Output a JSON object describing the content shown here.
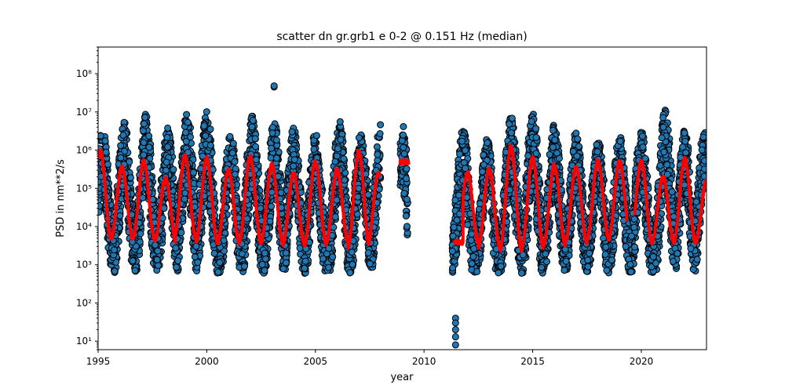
{
  "chart_data": {
    "type": "scatter",
    "title": "scatter dn gr.grb1 e 0-2 @ 0.151 Hz (median)",
    "xlabel": "year",
    "ylabel": "PSD in nm**2/s",
    "xlim": [
      1995.0,
      2023.0
    ],
    "ylim": [
      6,
      500000000
    ],
    "yscale": "log",
    "x_ticks": [
      1995,
      2000,
      2005,
      2010,
      2015,
      2020
    ],
    "y_ticks": [
      {
        "value": 10,
        "label": "10¹"
      },
      {
        "value": 100,
        "label": "10²"
      },
      {
        "value": 1000,
        "label": "10³"
      },
      {
        "value": 10000,
        "label": "10⁴"
      },
      {
        "value": 100000,
        "label": "10⁵"
      },
      {
        "value": 1000000,
        "label": "10⁶"
      },
      {
        "value": 10000000,
        "label": "10⁷"
      },
      {
        "value": 100000000,
        "label": "10⁸"
      }
    ],
    "grid": false,
    "colors": {
      "points_fill": "#1f77b4",
      "points_edge": "#000000",
      "median_line": "#ff0000"
    },
    "scatter_envelope": {
      "segments": [
        {
          "x_start": 1995.0,
          "x_end": 2008.0
        },
        {
          "x_start": 2008.9,
          "x_end": 2009.25
        },
        {
          "x_start": 2011.3,
          "x_end": 2023.0
        }
      ],
      "peaks": [
        {
          "x": 1995.2,
          "max": 4000000
        },
        {
          "x": 1996.2,
          "max": 6000000
        },
        {
          "x": 1997.2,
          "max": 9000000
        },
        {
          "x": 1998.2,
          "max": 4000000
        },
        {
          "x": 1999.1,
          "max": 12000000
        },
        {
          "x": 2000.0,
          "max": 12000000
        },
        {
          "x": 2001.1,
          "max": 3000000
        },
        {
          "x": 2002.1,
          "max": 8000000
        },
        {
          "x": 2003.1,
          "max": 6000000
        },
        {
          "x": 2004.0,
          "max": 4000000
        },
        {
          "x": 2005.0,
          "max": 3000000
        },
        {
          "x": 2006.1,
          "max": 6000000
        },
        {
          "x": 2007.1,
          "max": 3000000
        },
        {
          "x": 2008.0,
          "max": 6000000
        },
        {
          "x": 2009.0,
          "max": 5000000
        },
        {
          "x": 2011.8,
          "max": 4000000
        },
        {
          "x": 2012.9,
          "max": 2000000
        },
        {
          "x": 2014.0,
          "max": 8000000
        },
        {
          "x": 2015.0,
          "max": 11000000
        },
        {
          "x": 2016.0,
          "max": 5000000
        },
        {
          "x": 2017.0,
          "max": 3000000
        },
        {
          "x": 2018.0,
          "max": 2000000
        },
        {
          "x": 2019.0,
          "max": 2500000
        },
        {
          "x": 2020.0,
          "max": 3500000
        },
        {
          "x": 2021.1,
          "max": 12000000
        },
        {
          "x": 2022.0,
          "max": 3500000
        },
        {
          "x": 2022.9,
          "max": 3500000
        }
      ],
      "troughs_min": 600
    },
    "outliers": [
      {
        "x": 2003.1,
        "y": 45000000
      },
      {
        "x": 2003.1,
        "y": 48000000
      },
      {
        "x": 2011.45,
        "y": 40
      },
      {
        "x": 2011.45,
        "y": 30
      },
      {
        "x": 2011.45,
        "y": 20
      },
      {
        "x": 2011.45,
        "y": 13
      },
      {
        "x": 2011.45,
        "y": 8
      }
    ],
    "median_series": {
      "segments": [
        {
          "x_start": 1995.0,
          "x_end": 2007.95
        },
        {
          "x_start": 2008.9,
          "x_end": 2009.3
        },
        {
          "x_start": 2011.4,
          "x_end": 2019.35
        },
        {
          "x_start": 2019.7,
          "x_end": 2023.0
        }
      ],
      "cycles": [
        {
          "peak_x": 1995.1,
          "peak": 1000000,
          "trough": 5000
        },
        {
          "peak_x": 1996.1,
          "peak": 350000,
          "trough": 5000
        },
        {
          "peak_x": 1997.1,
          "peak": 500000,
          "trough": 5000
        },
        {
          "peak_x": 1998.1,
          "peak": 180000,
          "trough": 4000
        },
        {
          "peak_x": 1999.0,
          "peak": 700000,
          "trough": 5000
        },
        {
          "peak_x": 2000.0,
          "peak": 600000,
          "trough": 4000
        },
        {
          "peak_x": 2001.0,
          "peak": 300000,
          "trough": 4000
        },
        {
          "peak_x": 2002.0,
          "peak": 650000,
          "trough": 4000
        },
        {
          "peak_x": 2003.0,
          "peak": 400000,
          "trough": 4000
        },
        {
          "peak_x": 2004.0,
          "peak": 250000,
          "trough": 3500
        },
        {
          "peak_x": 2005.0,
          "peak": 500000,
          "trough": 3500
        },
        {
          "peak_x": 2006.0,
          "peak": 300000,
          "trough": 4000
        },
        {
          "peak_x": 2007.0,
          "peak": 900000,
          "trough": 3000
        },
        {
          "peak_x": 2007.9,
          "peak": 250000,
          "trough": 3000
        },
        {
          "peak_x": 2009.1,
          "peak": 500000,
          "trough": 450000
        },
        {
          "peak_x": 2011.6,
          "peak": 4000,
          "trough": 3500
        },
        {
          "peak_x": 2012.0,
          "peak": 250000,
          "trough": 4000
        },
        {
          "peak_x": 2013.0,
          "peak": 300000,
          "trough": 3000
        },
        {
          "peak_x": 2014.0,
          "peak": 1200000,
          "trough": 2500
        },
        {
          "peak_x": 2015.0,
          "peak": 600000,
          "trough": 3000
        },
        {
          "peak_x": 2016.0,
          "peak": 400000,
          "trough": 3500
        },
        {
          "peak_x": 2017.0,
          "peak": 350000,
          "trough": 4000
        },
        {
          "peak_x": 2018.0,
          "peak": 500000,
          "trough": 5000
        },
        {
          "peak_x": 2019.0,
          "peak": 500000,
          "trough": 5000
        },
        {
          "peak_x": 2020.0,
          "peak": 500000,
          "trough": 4000
        },
        {
          "peak_x": 2021.0,
          "peak": 200000,
          "trough": 4000
        },
        {
          "peak_x": 2022.0,
          "peak": 600000,
          "trough": 4000
        },
        {
          "peak_x": 2023.0,
          "peak": 150000,
          "trough": 4000
        }
      ]
    }
  }
}
